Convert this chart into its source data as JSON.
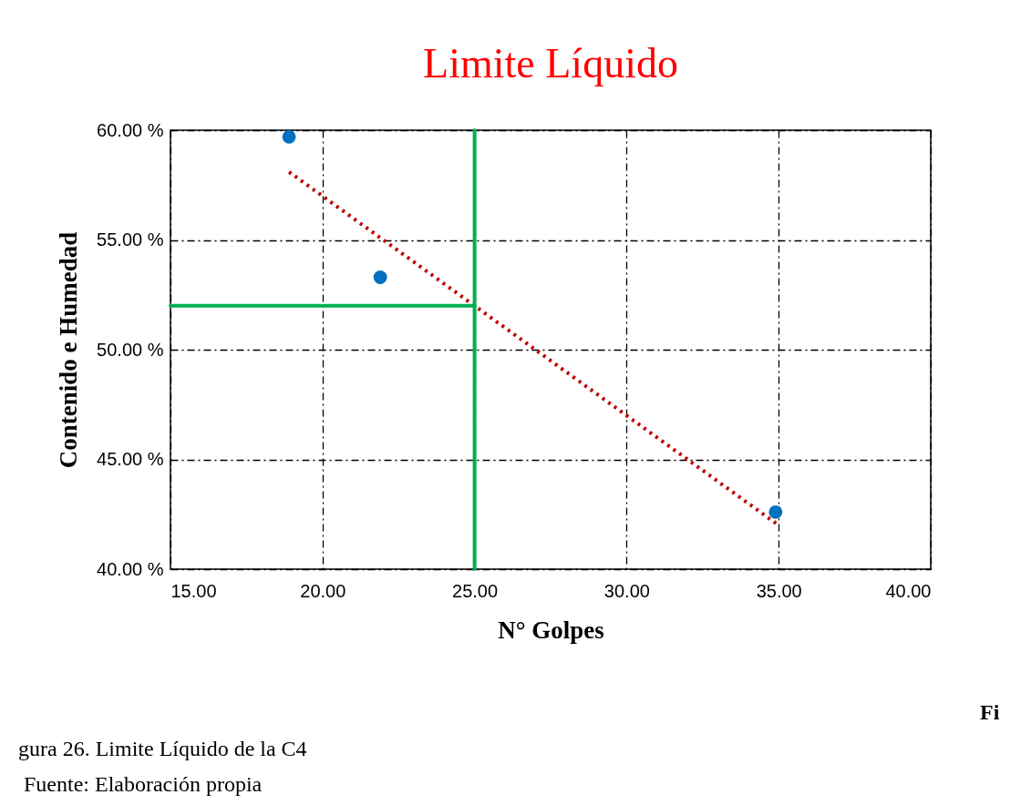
{
  "chart_data": {
    "type": "scatter",
    "title": "Limite Líquido",
    "xlabel": "N° Golpes",
    "ylabel": "Contenido e Humedad",
    "xlim": [
      15,
      40
    ],
    "xticks": [
      {
        "value": 15,
        "label": "15.00"
      },
      {
        "value": 20,
        "label": "20.00"
      },
      {
        "value": 25,
        "label": "25.00"
      },
      {
        "value": 30,
        "label": "30.00"
      },
      {
        "value": 35,
        "label": "35.00"
      },
      {
        "value": 40,
        "label": "40.00"
      }
    ],
    "ylim": [
      40,
      60
    ],
    "yticks": [
      {
        "value": 40,
        "label": "40.00 %"
      },
      {
        "value": 45,
        "label": "45.00 %"
      },
      {
        "value": 50,
        "label": "50.00 %"
      },
      {
        "value": 55,
        "label": "55.00 %"
      },
      {
        "value": 60,
        "label": "60.00 %"
      }
    ],
    "grid": true,
    "series": [
      {
        "color": "#0070c0",
        "marker": "circle",
        "x": [
          18.9,
          21.9,
          34.9
        ],
        "values": [
          59.7,
          53.3,
          42.6
        ]
      },
      {
        "type": "line",
        "marker": "none",
        "color": "#c00000",
        "line_style": "dotted",
        "x": [
          18.9,
          35
        ],
        "values": [
          58.1,
          42.0
        ]
      },
      {
        "type": "line",
        "marker": "none",
        "color": "#00b050",
        "line_style": "solid",
        "x": [
          15,
          25
        ],
        "values": [
          52,
          52
        ]
      },
      {
        "type": "line",
        "marker": "none",
        "color": "#00b050",
        "line_style": "solid",
        "x": [
          25,
          25
        ],
        "values": [
          40,
          60
        ]
      }
    ],
    "annotations": [
      "Fi",
      "gura  26. Limite Líquido de la C4",
      "Fuente: Elaboración propia"
    ]
  }
}
